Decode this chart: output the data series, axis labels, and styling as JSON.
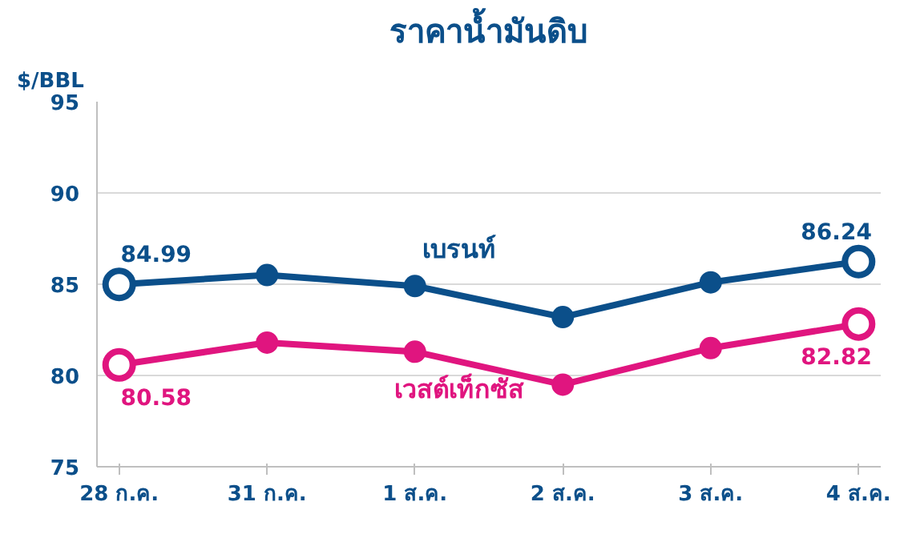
{
  "chart_data": {
    "type": "line",
    "title": "ราคาน้ำมันดิบ",
    "ylabel": "$/BBL",
    "categories": [
      "28 ก.ค.",
      "31 ก.ค.",
      "1 ส.ค.",
      "2 ส.ค.",
      "3 ส.ค.",
      "4 ส.ค."
    ],
    "ylim": [
      75,
      95
    ],
    "yticks": [
      75,
      80,
      85,
      90,
      95
    ],
    "grid": "y",
    "marker": "circle",
    "line_style": "solid",
    "series": [
      {
        "name": "เบรนท์",
        "color": "#0b4f8a",
        "values": [
          84.99,
          85.5,
          84.9,
          83.2,
          85.1,
          86.24
        ],
        "value_labels": [
          "84.99",
          null,
          null,
          null,
          null,
          "86.24"
        ]
      },
      {
        "name": "เวสต์เท็กซัส",
        "color": "#e0157f",
        "values": [
          80.58,
          81.8,
          81.3,
          79.5,
          81.5,
          82.82
        ],
        "value_labels": [
          "80.58",
          null,
          null,
          null,
          null,
          "82.82"
        ]
      }
    ]
  }
}
